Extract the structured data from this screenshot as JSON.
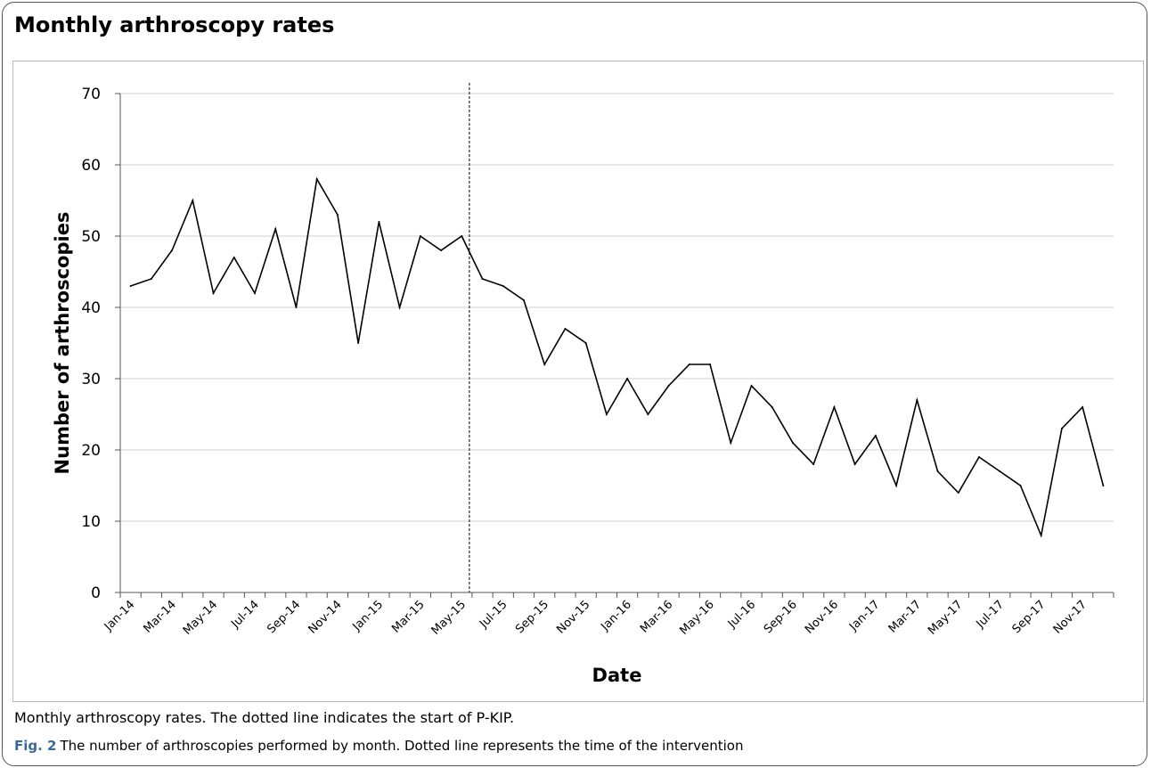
{
  "page": {
    "title": "Monthly arthroscopy rates",
    "note": "Monthly arthroscopy rates.  The dotted line indicates the start of P-KIP.",
    "figure_label": "Fig. 2",
    "figure_caption": "The number of arthroscopies performed by month. Dotted line represents the time of the intervention"
  },
  "chart_data": {
    "type": "line",
    "title": "",
    "xlabel": "Date",
    "ylabel": "Number of arthroscopies",
    "ylim": [
      0,
      70
    ],
    "yticks": [
      0,
      10,
      20,
      30,
      40,
      50,
      60,
      70
    ],
    "grid": true,
    "x": [
      "Jan-14",
      "Feb-14",
      "Mar-14",
      "Apr-14",
      "May-14",
      "Jun-14",
      "Jul-14",
      "Aug-14",
      "Sep-14",
      "Oct-14",
      "Nov-14",
      "Dec-14",
      "Jan-15",
      "Feb-15",
      "Mar-15",
      "Apr-15",
      "May-15",
      "Jun-15",
      "Jul-15",
      "Aug-15",
      "Sep-15",
      "Oct-15",
      "Nov-15",
      "Dec-15",
      "Jan-16",
      "Feb-16",
      "Mar-16",
      "Apr-16",
      "May-16",
      "Jun-16",
      "Jul-16",
      "Aug-16",
      "Sep-16",
      "Oct-16",
      "Nov-16",
      "Dec-16",
      "Jan-17",
      "Feb-17",
      "Mar-17",
      "Apr-17",
      "May-17",
      "Jun-17",
      "Jul-17",
      "Aug-17",
      "Sep-17",
      "Oct-17",
      "Nov-17",
      "Dec-17"
    ],
    "xtick_labels": [
      "Jan-14",
      "Mar-14",
      "May-14",
      "Jul-14",
      "Sep-14",
      "Nov-14",
      "Jan-15",
      "Mar-15",
      "May-15",
      "Jul-15",
      "Sep-15",
      "Nov-15",
      "Jan-16",
      "Mar-16",
      "May-16",
      "Jul-16",
      "Sep-16",
      "Nov-16",
      "Jan-17",
      "Mar-17",
      "May-17",
      "Jul-17",
      "Sep-17",
      "Nov-17"
    ],
    "series": [
      {
        "values": [
          43,
          44,
          48,
          55,
          42,
          47,
          42,
          51,
          40,
          58,
          53,
          35,
          52,
          40,
          50,
          48,
          50,
          44,
          43,
          41,
          32,
          37,
          35,
          25,
          30,
          25,
          29,
          32,
          32,
          21,
          29,
          26,
          21,
          18,
          26,
          18,
          22,
          15,
          27,
          17,
          14,
          19,
          17,
          15,
          8,
          23,
          26,
          15
        ],
        "color": "#000000"
      }
    ],
    "intervention_marker": "Jun-15"
  }
}
